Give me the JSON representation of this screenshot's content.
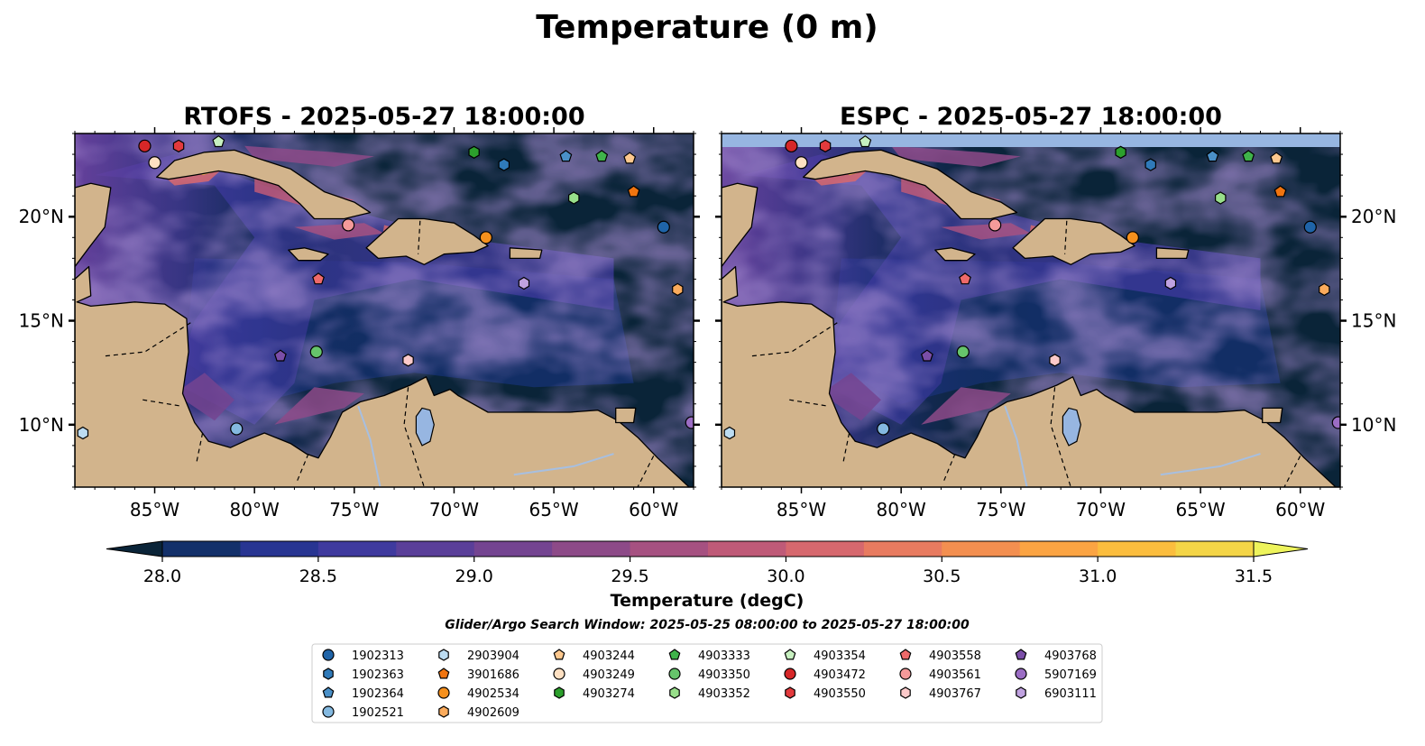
{
  "figure_title": "Temperature (0 m)",
  "panels": [
    {
      "title": "RTOFS - 2025-05-27 18:00:00"
    },
    {
      "title": "ESPC - 2025-05-27 18:00:00"
    }
  ],
  "x_ticks": [
    "85°W",
    "80°W",
    "75°W",
    "70°W",
    "65°W",
    "60°W"
  ],
  "y_ticks": [
    "20°N",
    "15°N",
    "10°N"
  ],
  "colorbar": {
    "label": "Temperature (degC)",
    "ticks": [
      "28.0",
      "28.5",
      "29.0",
      "29.5",
      "30.0",
      "30.5",
      "31.0",
      "31.5"
    ],
    "colors": [
      "#0a2438",
      "#13306a",
      "#283592",
      "#3f3a9e",
      "#5a3f99",
      "#744491",
      "#8d4a88",
      "#a65181",
      "#bf5a78",
      "#d6686e",
      "#e87b60",
      "#f38f50",
      "#fba443",
      "#fbbd3e",
      "#f4d547",
      "#eef45c"
    ]
  },
  "search_window": "Glider/Argo Search Window: 2025-05-25 08:00:00 to 2025-05-27 18:00:00",
  "legend": [
    {
      "label": "1902313",
      "shape": "circle",
      "color": "#1f64a8"
    },
    {
      "label": "1902363",
      "shape": "hexagon",
      "color": "#2f7ab9"
    },
    {
      "label": "1902364",
      "shape": "pentagon",
      "color": "#4a90c8"
    },
    {
      "label": "1902521",
      "shape": "circle",
      "color": "#84b9e0"
    },
    {
      "label": "2903904",
      "shape": "hexagon",
      "color": "#bcdcf2"
    },
    {
      "label": "3901686",
      "shape": "pentagon",
      "color": "#f0740f"
    },
    {
      "label": "4902534",
      "shape": "circle",
      "color": "#f5901d"
    },
    {
      "label": "4902609",
      "shape": "hexagon",
      "color": "#fbab5c"
    },
    {
      "label": "4903244",
      "shape": "pentagon",
      "color": "#fdc88e"
    },
    {
      "label": "4903249",
      "shape": "circle",
      "color": "#fee0c2"
    },
    {
      "label": "4903274",
      "shape": "hexagon",
      "color": "#2ca02c"
    },
    {
      "label": "4903333",
      "shape": "pentagon",
      "color": "#3fb34a"
    },
    {
      "label": "4903350",
      "shape": "circle",
      "color": "#66c46b"
    },
    {
      "label": "4903352",
      "shape": "hexagon",
      "color": "#98df8a"
    },
    {
      "label": "4903354",
      "shape": "pentagon",
      "color": "#c7f0c0"
    },
    {
      "label": "4903472",
      "shape": "circle",
      "color": "#d62728"
    },
    {
      "label": "4903550",
      "shape": "hexagon",
      "color": "#e33a3d"
    },
    {
      "label": "4903558",
      "shape": "pentagon",
      "color": "#ef6a6a"
    },
    {
      "label": "4903561",
      "shape": "circle",
      "color": "#f59a9a"
    },
    {
      "label": "4903767",
      "shape": "hexagon",
      "color": "#fccaca"
    },
    {
      "label": "4903768",
      "shape": "pentagon",
      "color": "#7b4ea8"
    },
    {
      "label": "5907169",
      "shape": "circle",
      "color": "#9b6dc4"
    },
    {
      "label": "6903111",
      "shape": "hexagon",
      "color": "#c0a2e0"
    }
  ],
  "map": {
    "lon_range": [
      -89,
      -58
    ],
    "lat_range": [
      7,
      24
    ],
    "land_color": "#d2b48c",
    "lake_color": "#97b6e1"
  },
  "markers": [
    {
      "id": "4903472",
      "lon": -85.5,
      "lat": 23.4
    },
    {
      "id": "4903550",
      "lon": -83.8,
      "lat": 23.4
    },
    {
      "id": "4903354",
      "lon": -81.8,
      "lat": 23.6
    },
    {
      "id": "4903249",
      "lon": -85.0,
      "lat": 22.6
    },
    {
      "id": "4903274",
      "lon": -69.0,
      "lat": 23.1
    },
    {
      "id": "1902363",
      "lon": -67.5,
      "lat": 22.5
    },
    {
      "id": "1902364",
      "lon": -64.4,
      "lat": 22.9
    },
    {
      "id": "4903333",
      "lon": -62.6,
      "lat": 22.9
    },
    {
      "id": "4903244",
      "lon": -61.2,
      "lat": 22.8
    },
    {
      "id": "4903352",
      "lon": -64.0,
      "lat": 20.9
    },
    {
      "id": "3901686",
      "lon": -61.0,
      "lat": 21.2
    },
    {
      "id": "4903561",
      "lon": -75.3,
      "lat": 19.6
    },
    {
      "id": "4902534",
      "lon": -68.4,
      "lat": 19.0
    },
    {
      "id": "1902313",
      "lon": -59.5,
      "lat": 19.5
    },
    {
      "id": "4903558",
      "lon": -76.8,
      "lat": 17.0
    },
    {
      "id": "6903111",
      "lon": -66.5,
      "lat": 16.8
    },
    {
      "id": "4902609",
      "lon": -58.8,
      "lat": 16.5
    },
    {
      "id": "4903768",
      "lon": -78.7,
      "lat": 13.3
    },
    {
      "id": "4903350",
      "lon": -76.9,
      "lat": 13.5
    },
    {
      "id": "4903767",
      "lon": -72.3,
      "lat": 13.1
    },
    {
      "id": "1902521",
      "lon": -80.9,
      "lat": 9.8
    },
    {
      "id": "2903904",
      "lon": -88.6,
      "lat": 9.6
    },
    {
      "id": "5907169",
      "lon": -58.1,
      "lat": 10.1
    }
  ]
}
